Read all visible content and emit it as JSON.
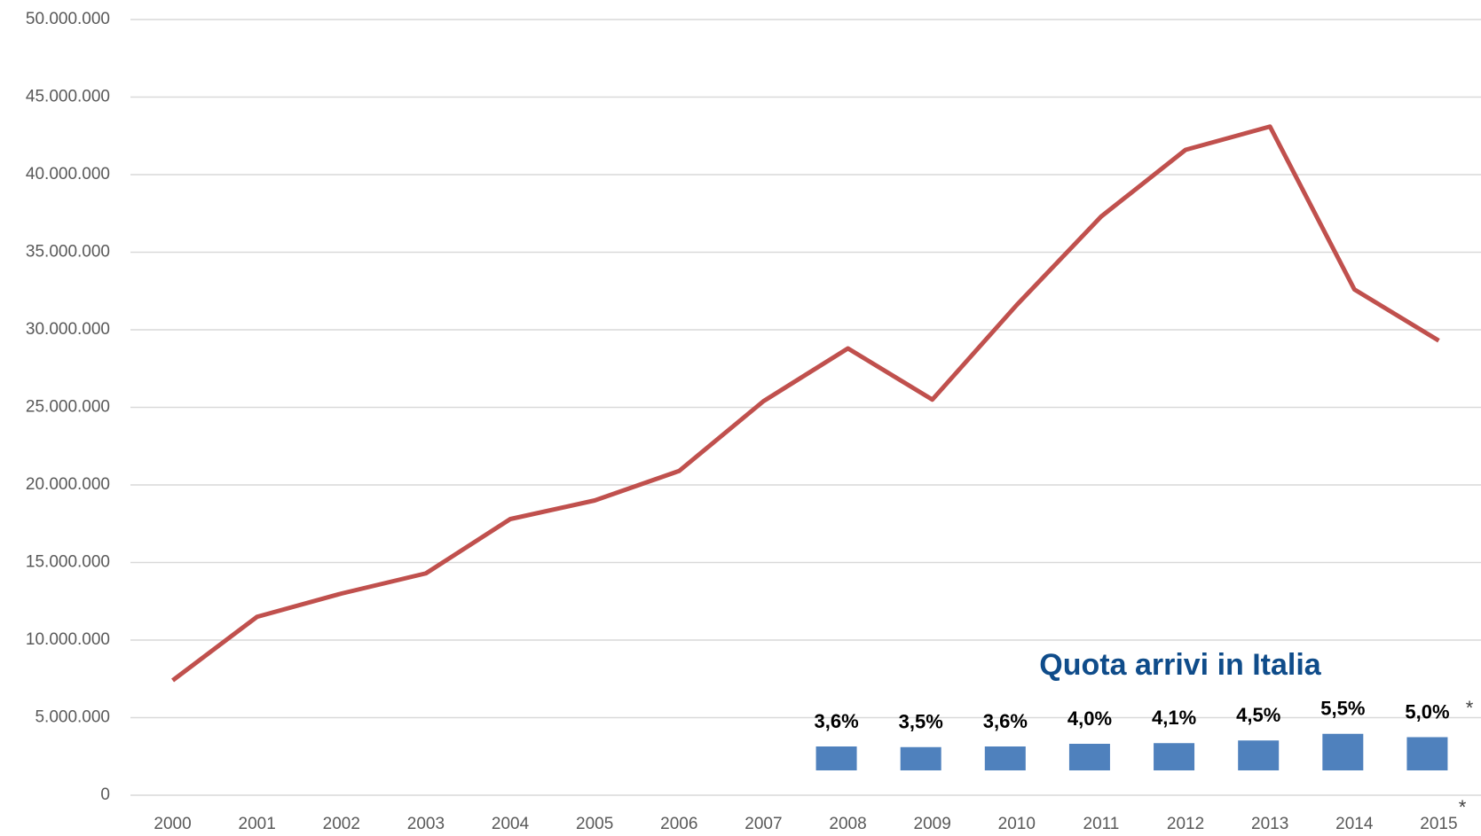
{
  "chart_data": [
    {
      "type": "line",
      "categories": [
        "2000",
        "2001",
        "2002",
        "2003",
        "2004",
        "2005",
        "2006",
        "2007",
        "2008",
        "2009",
        "2010",
        "2011",
        "2012",
        "2013",
        "2014",
        "2015"
      ],
      "series": [
        {
          "name": null,
          "color": "#c0504d",
          "values": [
            7400000,
            11500000,
            13000000,
            14300000,
            17800000,
            19000000,
            20900000,
            25400000,
            28800000,
            25500000,
            31600000,
            37300000,
            41600000,
            43100000,
            32600000,
            29300000
          ]
        }
      ],
      "ylim": [
        0,
        50000000
      ],
      "yticks": [
        0,
        {
          "value": 5000000,
          "label": "5.000.000"
        },
        {
          "value": 10000000,
          "label": "10.000.000"
        },
        {
          "value": 15000000,
          "label": "15.000.000"
        },
        {
          "value": 20000000,
          "label": "20.000.000"
        },
        {
          "value": 25000000,
          "label": "25.000.000"
        },
        {
          "value": 30000000,
          "label": "30.000.000"
        },
        {
          "value": 35000000,
          "label": "35.000.000"
        },
        {
          "value": 40000000,
          "label": "40.000.000"
        },
        {
          "value": 45000000,
          "label": "45.000.000"
        },
        {
          "value": 50000000,
          "label": "50.000.000"
        }
      ],
      "grid": true,
      "annotations": [
        "*"
      ]
    },
    {
      "type": "bar",
      "title": "Quota arrivi in Italia",
      "categories": [
        "2008",
        "2009",
        "2010",
        "2011",
        "2012",
        "2013",
        "2014",
        "2015"
      ],
      "values": [
        3.6,
        3.5,
        3.6,
        4.0,
        4.1,
        4.5,
        5.5,
        5.0
      ],
      "value_labels": [
        "3,6%",
        "3,5%",
        "3,6%",
        "4,0%",
        "4,1%",
        "4,5%",
        "5,5%",
        "5,0%"
      ],
      "color": "#4f81bd",
      "ylim": [
        0,
        6
      ],
      "annotations": [
        "*"
      ]
    }
  ]
}
